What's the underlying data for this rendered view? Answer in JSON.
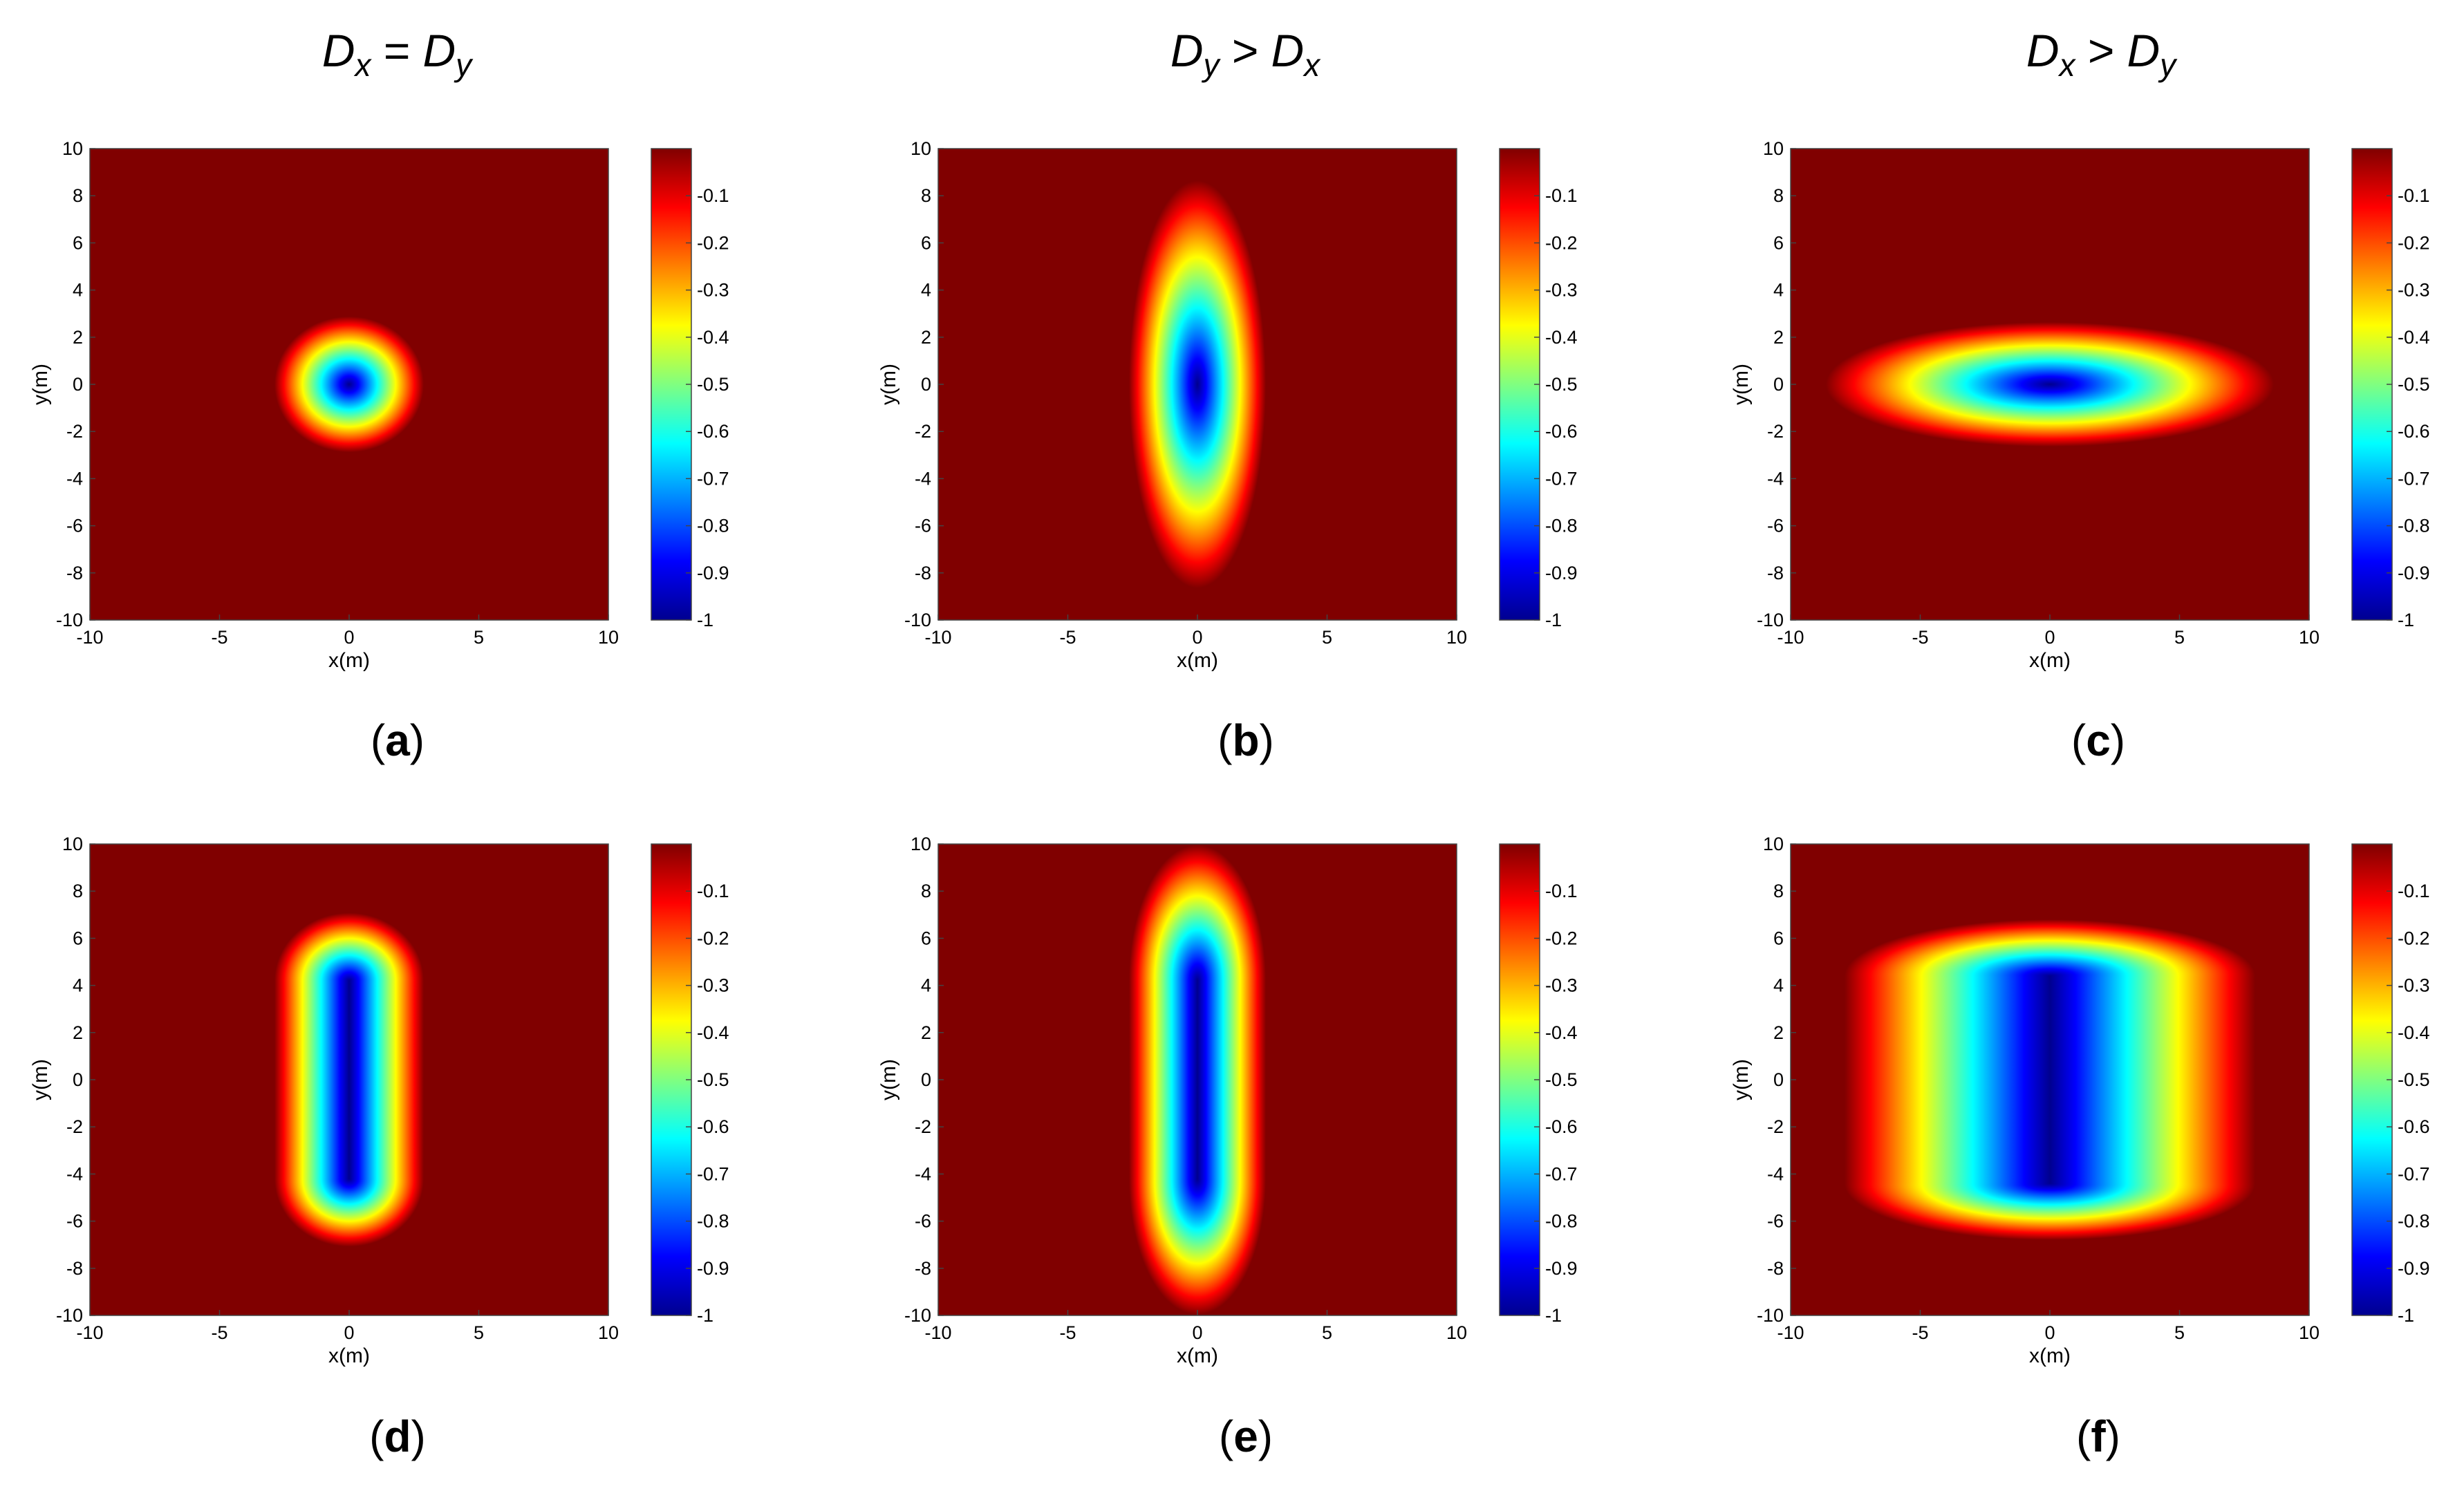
{
  "figure": {
    "columns": [
      {
        "math_left": "D",
        "sub_left": "x",
        "op": " =",
        "math_right": "D",
        "sub_right": "y"
      },
      {
        "math_left": "D",
        "sub_left": "y",
        "op": " >",
        "math_right": "D",
        "sub_right": "x"
      },
      {
        "math_left": "D",
        "sub_left": "x",
        "op": " >",
        "math_right": "D",
        "sub_right": "y"
      }
    ]
  },
  "chart_data": [
    {
      "type": "heatmap",
      "panel": "a",
      "caption_open": "(",
      "caption_letter": "a",
      "caption_close": ")",
      "xlabel": "x(m)",
      "ylabel": "y(m)",
      "xlim": [
        -10,
        10
      ],
      "ylim": [
        -10,
        10
      ],
      "xticks": [
        -10,
        -5,
        0,
        5,
        10
      ],
      "yticks": [
        -10,
        -8,
        -6,
        -4,
        -2,
        0,
        2,
        4,
        6,
        8,
        10
      ],
      "colorbar_ticks": [
        -0.1,
        -0.2,
        -0.3,
        -0.4,
        -0.5,
        -0.6,
        -0.7,
        -0.8,
        -0.9,
        -1
      ],
      "color_range": [
        -1,
        0
      ],
      "center": [
        0,
        0
      ],
      "radius_x": 1.2,
      "radius_y": 1.2,
      "shape": "circle",
      "min_value": -1
    },
    {
      "type": "heatmap",
      "panel": "b",
      "caption_open": "(",
      "caption_letter": "b",
      "caption_close": ")",
      "xlabel": "x(m)",
      "ylabel": "y(m)",
      "xlim": [
        -10,
        10
      ],
      "ylim": [
        -10,
        10
      ],
      "xticks": [
        -10,
        -5,
        0,
        5,
        10
      ],
      "yticks": [
        -10,
        -8,
        -6,
        -4,
        -2,
        0,
        2,
        4,
        6,
        8,
        10
      ],
      "colorbar_ticks": [
        -0.1,
        -0.2,
        -0.3,
        -0.4,
        -0.5,
        -0.6,
        -0.7,
        -0.8,
        -0.9,
        -1
      ],
      "color_range": [
        -1,
        0
      ],
      "center": [
        0,
        0
      ],
      "radius_x": 1.1,
      "radius_y": 3.6,
      "shape": "ellipse",
      "min_value": -1
    },
    {
      "type": "heatmap",
      "panel": "c",
      "caption_open": "(",
      "caption_letter": "c",
      "caption_close": ")",
      "xlabel": "x(m)",
      "ylabel": "y(m)",
      "xlim": [
        -10,
        10
      ],
      "ylim": [
        -10,
        10
      ],
      "xticks": [
        -10,
        -5,
        0,
        5,
        10
      ],
      "yticks": [
        -10,
        -8,
        -6,
        -4,
        -2,
        0,
        2,
        4,
        6,
        8,
        10
      ],
      "colorbar_ticks": [
        -0.1,
        -0.2,
        -0.3,
        -0.4,
        -0.5,
        -0.6,
        -0.7,
        -0.8,
        -0.9,
        -1
      ],
      "color_range": [
        -1,
        0
      ],
      "center": [
        0,
        0
      ],
      "radius_x": 3.6,
      "radius_y": 1.1,
      "shape": "ellipse",
      "min_value": -1
    },
    {
      "type": "heatmap",
      "panel": "d",
      "caption_open": "(",
      "caption_letter": "d",
      "caption_close": ")",
      "xlabel": "x(m)",
      "ylabel": "y(m)",
      "xlim": [
        -10,
        10
      ],
      "ylim": [
        -10,
        10
      ],
      "xticks": [
        -10,
        -5,
        0,
        5,
        10
      ],
      "yticks": [
        -10,
        -8,
        -6,
        -4,
        -2,
        0,
        2,
        4,
        6,
        8,
        10
      ],
      "colorbar_ticks": [
        -0.1,
        -0.2,
        -0.3,
        -0.4,
        -0.5,
        -0.6,
        -0.7,
        -0.8,
        -0.9,
        -1
      ],
      "color_range": [
        -1,
        0
      ],
      "center": [
        0,
        0
      ],
      "radius_x": 1.2,
      "radius_y": 1.2,
      "shape": "line-source",
      "line_half_length": 4.2,
      "min_value": -1
    },
    {
      "type": "heatmap",
      "panel": "e",
      "caption_open": "(",
      "caption_letter": "e",
      "caption_close": ")",
      "xlabel": "x(m)",
      "ylabel": "y(m)",
      "xlim": [
        -10,
        10
      ],
      "ylim": [
        -10,
        10
      ],
      "xticks": [
        -10,
        -5,
        0,
        5,
        10
      ],
      "yticks": [
        -10,
        -8,
        -6,
        -4,
        -2,
        0,
        2,
        4,
        6,
        8,
        10
      ],
      "colorbar_ticks": [
        -0.1,
        -0.2,
        -0.3,
        -0.4,
        -0.5,
        -0.6,
        -0.7,
        -0.8,
        -0.9,
        -1
      ],
      "color_range": [
        -1,
        0
      ],
      "center": [
        0,
        0
      ],
      "radius_x": 1.1,
      "radius_y": 2.4,
      "shape": "line-source",
      "line_half_length": 4.2,
      "min_value": -1
    },
    {
      "type": "heatmap",
      "panel": "f",
      "caption_open": "(",
      "caption_letter": "f",
      "caption_close": ")",
      "xlabel": "x(m)",
      "ylabel": "y(m)",
      "xlim": [
        -10,
        10
      ],
      "ylim": [
        -10,
        10
      ],
      "xticks": [
        -10,
        -5,
        0,
        5,
        10
      ],
      "yticks": [
        -10,
        -8,
        -6,
        -4,
        -2,
        0,
        2,
        4,
        6,
        8,
        10
      ],
      "colorbar_ticks": [
        -0.1,
        -0.2,
        -0.3,
        -0.4,
        -0.5,
        -0.6,
        -0.7,
        -0.8,
        -0.9,
        -1
      ],
      "color_range": [
        -1,
        0
      ],
      "center": [
        0,
        0
      ],
      "radius_x": 3.3,
      "radius_y": 1.0,
      "shape": "line-source",
      "line_half_length": 4.4,
      "min_value": -1
    }
  ],
  "colors": {
    "colormap": [
      "#00008f",
      "#0000ff",
      "#0080ff",
      "#00ffff",
      "#80ff80",
      "#ffff00",
      "#ff8000",
      "#ff0000",
      "#800000"
    ],
    "background": "#ffffff",
    "text": "#000000"
  }
}
